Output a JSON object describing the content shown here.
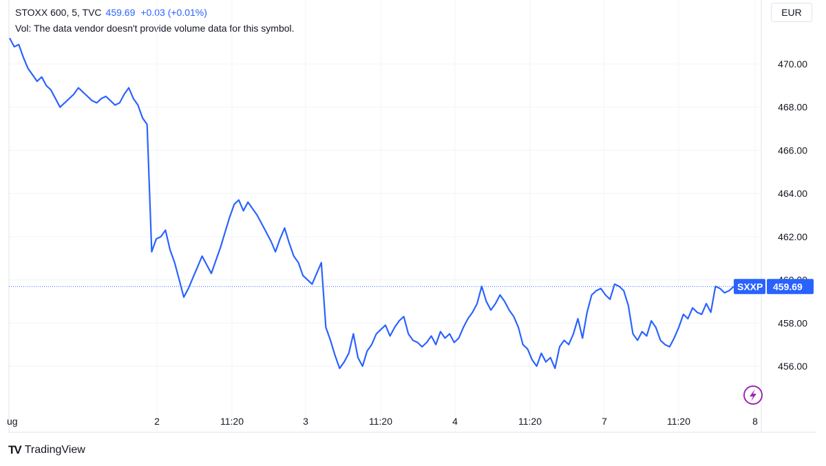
{
  "legend": {
    "symbol": "STOXX 600, 5, TVC",
    "price": "459.69",
    "change": "+0.03 (+0.01%)",
    "volume_note": "Vol: The data vendor doesn't provide volume data for this symbol."
  },
  "currency": "EUR",
  "watermark_icon": "lightning-bolt-icon",
  "brand": {
    "name": "TradingView"
  },
  "colors": {
    "line": "#2962ff",
    "grid": "#f0f3fa",
    "tag": "#2962ff",
    "icon": "#9c27b0"
  },
  "price_tag": {
    "symbol": "SXXP",
    "value": "459.69"
  },
  "chart_data": {
    "type": "line",
    "ylim": [
      454.5,
      472
    ],
    "y_ticks": [
      "470.00",
      "468.00",
      "466.00",
      "464.00",
      "462.00",
      "460.00",
      "458.00",
      "456.00"
    ],
    "x_ticks": [
      "ug",
      "2",
      "11:20",
      "3",
      "11:20",
      "4",
      "11:20",
      "7",
      "11:20",
      "8"
    ],
    "last_value": 459.69,
    "series": [
      {
        "values": [
          471.2,
          470.8,
          470.9,
          470.3,
          469.8,
          469.5,
          469.2,
          469.4,
          469.0,
          468.8,
          468.4,
          468.0,
          468.2,
          468.4,
          468.6,
          468.9,
          468.7,
          468.5,
          468.3,
          468.2,
          468.4,
          468.5,
          468.3,
          468.1,
          468.2,
          468.6,
          468.9,
          468.4,
          468.1,
          467.5,
          467.2,
          461.3,
          461.9,
          462.0,
          462.3,
          461.4,
          460.8,
          460.0,
          459.2,
          459.6,
          460.1,
          460.6,
          461.1,
          460.7,
          460.3,
          460.9,
          461.5,
          462.2,
          462.9,
          463.5,
          463.7,
          463.2,
          463.6,
          463.3,
          463.0,
          462.6,
          462.2,
          461.8,
          461.3,
          461.9,
          462.4,
          461.7,
          461.1,
          460.8,
          460.2,
          460.0,
          459.8,
          460.3,
          460.8,
          457.8,
          457.2,
          456.5,
          455.9,
          456.2,
          456.6,
          457.5,
          456.4,
          456.0,
          456.7,
          457.0,
          457.5,
          457.7,
          457.9,
          457.4,
          457.8,
          458.1,
          458.3,
          457.5,
          457.2,
          457.1,
          456.9,
          457.1,
          457.4,
          457.0,
          457.6,
          457.3,
          457.5,
          457.1,
          457.3,
          457.8,
          458.2,
          458.5,
          458.9,
          459.7,
          459.0,
          458.6,
          458.9,
          459.3,
          459.0,
          458.6,
          458.3,
          457.8,
          457.0,
          456.8,
          456.3,
          456.0,
          456.6,
          456.2,
          456.4,
          455.9,
          456.9,
          457.2,
          457.0,
          457.5,
          458.2,
          457.3,
          458.5,
          459.3,
          459.5,
          459.6,
          459.3,
          459.1,
          459.8,
          459.7,
          459.5,
          458.8,
          457.5,
          457.2,
          457.6,
          457.4,
          458.1,
          457.8,
          457.2,
          457.0,
          456.9,
          457.3,
          457.8,
          458.4,
          458.2,
          458.7,
          458.5,
          458.4,
          458.9,
          458.5,
          459.7,
          459.6,
          459.4,
          459.5,
          459.69
        ]
      }
    ]
  }
}
